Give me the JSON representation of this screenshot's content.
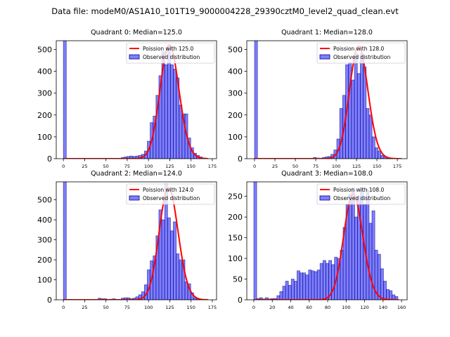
{
  "title": "Data file: modeM0/AS1A10_101T19_9000004228_29390cztM0_level2_quad_clean.evt",
  "colors": {
    "bar": "#0000ff",
    "bar_edge": "#000080",
    "curve": "#ff0000"
  },
  "chart_data": [
    {
      "type": "bar",
      "title": "Quadrant 0: Median=125.0",
      "xlim": [
        -8.4,
        180
      ],
      "ylim": [
        0,
        540
      ],
      "xticks": [
        0,
        25,
        50,
        75,
        100,
        125,
        150,
        175
      ],
      "yticks": [
        0,
        100,
        200,
        300,
        400,
        500
      ],
      "bin_start": 0,
      "bin_width": 3.4,
      "counts": [
        2000,
        0,
        0,
        0,
        0,
        0,
        0,
        0,
        0,
        0,
        0,
        0,
        0,
        0,
        0,
        0,
        0,
        0,
        0,
        0,
        5,
        8,
        10,
        12,
        10,
        12,
        15,
        20,
        35,
        80,
        165,
        195,
        290,
        380,
        490,
        430,
        520,
        430,
        410,
        370,
        245,
        205,
        205,
        95,
        50,
        25,
        15,
        8,
        3,
        1
      ],
      "poisson": {
        "lambda": 125.0,
        "peak": 520,
        "x_max": 170
      },
      "legend": {
        "curve": "Poission with 125.0",
        "bars": "Observed distribution",
        "position": "upper right"
      }
    },
    {
      "type": "bar",
      "title": "Quadrant 1: Median=128.0",
      "xlim": [
        -9.5,
        187
      ],
      "ylim": [
        0,
        540
      ],
      "xticks": [
        0,
        25,
        50,
        75,
        100,
        125,
        150,
        175
      ],
      "yticks": [
        0,
        100,
        200,
        300,
        400,
        500
      ],
      "bin_start": 0,
      "bin_width": 3.6,
      "counts": [
        2000,
        0,
        0,
        0,
        0,
        0,
        0,
        0,
        0,
        0,
        0,
        0,
        0,
        0,
        0,
        0,
        0,
        0,
        0,
        0,
        5,
        3,
        0,
        5,
        8,
        10,
        20,
        40,
        90,
        230,
        290,
        430,
        440,
        360,
        480,
        390,
        480,
        420,
        230,
        200,
        100,
        50,
        35,
        15,
        8,
        4,
        3,
        2,
        1,
        1
      ],
      "poisson": {
        "lambda": 128.0,
        "peak": 515,
        "x_max": 180
      },
      "legend": {
        "curve": "Poission with 128.0",
        "bars": "Observed distribution",
        "position": "upper right"
      }
    },
    {
      "type": "bar",
      "title": "Quadrant 2: Median=124.0",
      "xlim": [
        -8.4,
        180
      ],
      "ylim": [
        0,
        590
      ],
      "xticks": [
        0,
        25,
        50,
        75,
        100,
        125,
        150,
        175
      ],
      "yticks": [
        0,
        100,
        200,
        300,
        400,
        500
      ],
      "bin_start": 0,
      "bin_width": 3.4,
      "counts": [
        2000,
        0,
        0,
        0,
        0,
        0,
        0,
        0,
        0,
        0,
        0,
        0,
        8,
        5,
        5,
        0,
        3,
        5,
        0,
        0,
        8,
        10,
        10,
        5,
        8,
        15,
        25,
        40,
        75,
        150,
        195,
        220,
        320,
        450,
        400,
        580,
        410,
        345,
        390,
        230,
        200,
        200,
        90,
        80,
        35,
        10,
        5,
        2,
        1,
        0
      ],
      "poisson": {
        "lambda": 124.0,
        "peak": 560,
        "x_max": 170
      },
      "legend": {
        "curve": "Poission with 124.0",
        "bars": "Observed distribution",
        "position": "upper right"
      }
    },
    {
      "type": "bar",
      "title": "Quadrant 3: Median=108.0",
      "xlim": [
        -7.6,
        166
      ],
      "ylim": [
        0,
        285
      ],
      "xticks": [
        0,
        20,
        40,
        60,
        80,
        100,
        120,
        140,
        160
      ],
      "yticks": [
        0,
        50,
        100,
        150,
        200,
        250
      ],
      "bin_start": 0,
      "bin_width": 3.12,
      "counts": [
        2000,
        3,
        5,
        2,
        5,
        2,
        3,
        3,
        10,
        20,
        33,
        45,
        35,
        50,
        45,
        70,
        65,
        65,
        60,
        72,
        70,
        68,
        72,
        88,
        95,
        88,
        95,
        85,
        103,
        100,
        120,
        175,
        230,
        255,
        270,
        200,
        250,
        270,
        230,
        265,
        185,
        215,
        120,
        110,
        75,
        45,
        25,
        22,
        12,
        8
      ],
      "poisson": {
        "lambda": 108.0,
        "peak": 255,
        "x_max": 157
      },
      "legend": {
        "curve": "Poission with 108.0",
        "bars": "Observed distribution",
        "position": "upper right"
      }
    }
  ]
}
